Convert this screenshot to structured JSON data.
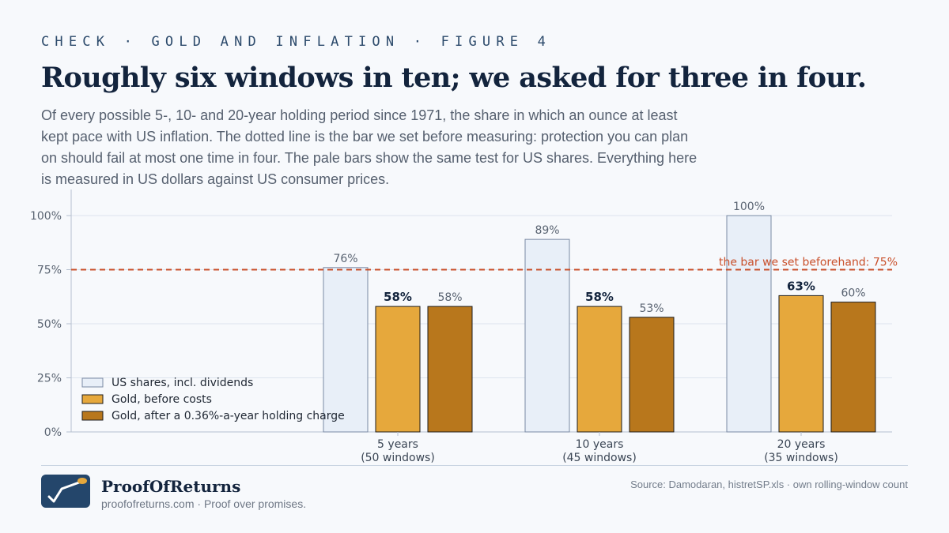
{
  "header": {
    "kicker": "CHECK · GOLD AND INFLATION · FIGURE 4",
    "title": "Roughly six windows in ten; we asked for three in four.",
    "subtitle": "Of every possible 5-, 10- and 20-year holding period since 1971, the share in which an ounce at least kept pace with US inflation. The dotted line is the bar we set before measuring: protection you can plan on should fail at most one time in four. The pale bars show the same test for US shares. Everything here is measured in US dollars against US consumer prices."
  },
  "chart_data": {
    "type": "bar",
    "categories": [
      {
        "label": "5 years",
        "sublabel": "(50 windows)"
      },
      {
        "label": "10 years",
        "sublabel": "(45 windows)"
      },
      {
        "label": "20 years",
        "sublabel": "(35 windows)"
      }
    ],
    "series": [
      {
        "name": "US shares, incl. dividends",
        "values": [
          76,
          89,
          100
        ],
        "labels": [
          "76%",
          "89%",
          "100%"
        ],
        "color": "#e8eff8",
        "stroke": "#7a8aa3",
        "label_bold": false
      },
      {
        "name": "Gold, before costs",
        "values": [
          58,
          58,
          63
        ],
        "labels": [
          "58%",
          "58%",
          "63%"
        ],
        "color": "#e6a83c",
        "stroke": "#1c1c1c",
        "label_bold": true
      },
      {
        "name": "Gold, after a 0.36%-a-year holding charge",
        "values": [
          58,
          53,
          60
        ],
        "labels": [
          "58%",
          "53%",
          "60%"
        ],
        "color": "#b8771c",
        "stroke": "#1c1c1c",
        "label_bold": false
      }
    ],
    "ylim": [
      0,
      100
    ],
    "yticks": [
      0,
      25,
      50,
      75,
      100
    ],
    "ytick_labels": [
      "0%",
      "25%",
      "50%",
      "75%",
      "100%"
    ],
    "grid": true,
    "legend_position": "bottom-left",
    "reference_line": {
      "value": 75,
      "label": "the bar we set beforehand: 75%",
      "color": "#c9502b"
    }
  },
  "footer": {
    "brand": "ProofOfReturns",
    "tagline": "proofofreturns.com · Proof over promises.",
    "source": "Source: Damodaran, histretSP.xls · own rolling-window count"
  },
  "colors": {
    "title": "#13243d",
    "accent": "#24466b",
    "reference": "#c9502b",
    "grid": "#dde4ee"
  }
}
